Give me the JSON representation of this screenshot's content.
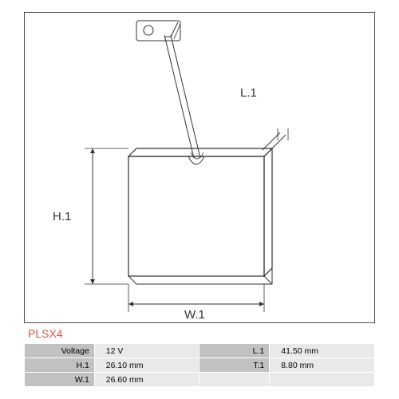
{
  "part_number": "PLSX4",
  "diagram": {
    "type": "technical-drawing",
    "labels": {
      "height": "H.1",
      "width": "W.1",
      "lead": "L.1"
    },
    "stroke_color": "#333333",
    "dim_color": "#333333",
    "arrow_size": 6
  },
  "specs": {
    "rows": [
      {
        "k1": "Voltage",
        "v1": "12 V",
        "k2": "L.1",
        "v2": "41.50 mm"
      },
      {
        "k1": "H.1",
        "v1": "26.10 mm",
        "k2": "T.1",
        "v2": "8.80 mm"
      },
      {
        "k1": "W.1",
        "v1": "26.60 mm",
        "k2": "",
        "v2": ""
      }
    ]
  }
}
